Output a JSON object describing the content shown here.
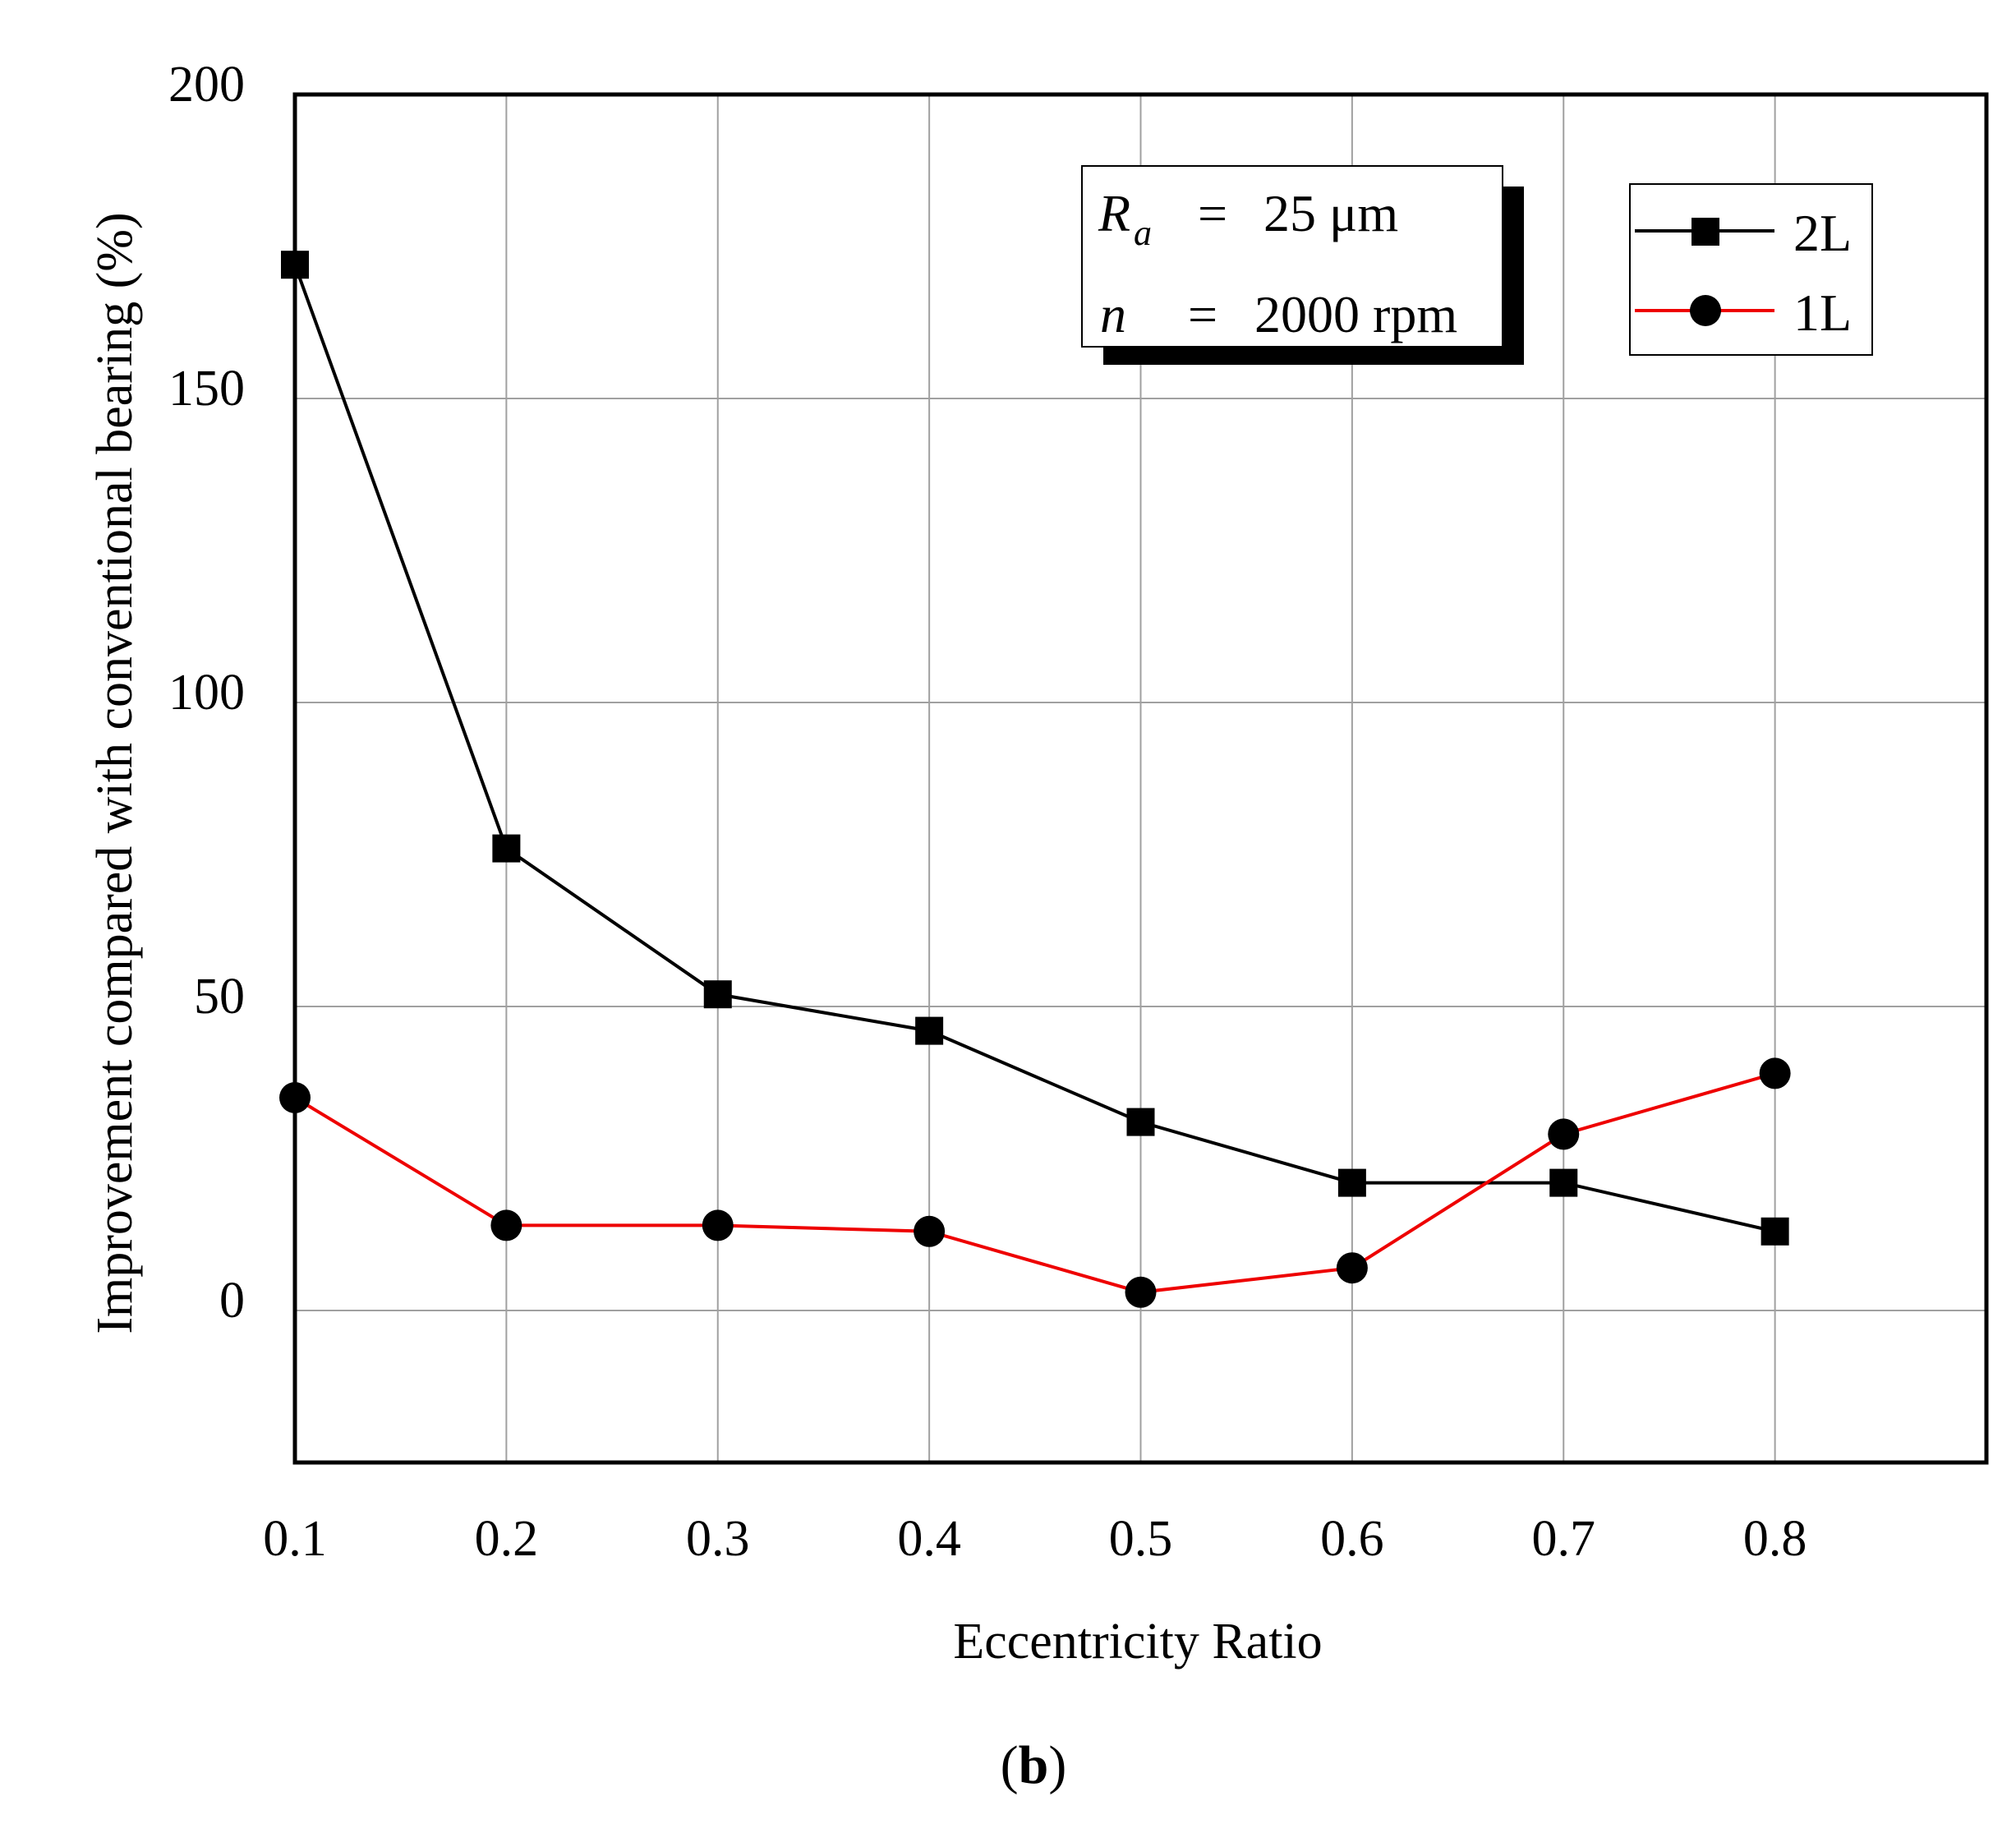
{
  "chart_data": {
    "type": "line",
    "title": "",
    "xlabel": "Eccentricity Ratio",
    "ylabel": "Improvement compared with conventional bearing (%)",
    "xlim": [
      0.1,
      0.9
    ],
    "ylim": [
      -25,
      200
    ],
    "x_ticks": [
      "0.1",
      "0.2",
      "0.3",
      "0.4",
      "0.5",
      "0.6",
      "0.7",
      "0.8"
    ],
    "y_ticks": [
      "200",
      "150",
      "100",
      "50",
      "0"
    ],
    "grid": true,
    "x": [
      0.1,
      0.2,
      0.3,
      0.4,
      0.5,
      0.6,
      0.7,
      0.8
    ],
    "series": [
      {
        "name": "2L",
        "marker": "square",
        "color": "#000000",
        "values": [
          172,
          76,
          52,
          46,
          31,
          21,
          21,
          13
        ]
      },
      {
        "name": "1L",
        "marker": "circle",
        "color": "#ee0000",
        "values": [
          35,
          14,
          14,
          13,
          3,
          7,
          29,
          39
        ]
      }
    ],
    "legend_position": "top-right",
    "annotation": {
      "ra_symbol": "R",
      "ra_sub": "a",
      "ra_eq": "=",
      "ra_value": "25 μm",
      "n_symbol": "n",
      "n_eq": "=",
      "n_value": "2000 rpm"
    },
    "panel_label_open": "(",
    "panel_label": "b",
    "panel_label_close": ")"
  }
}
